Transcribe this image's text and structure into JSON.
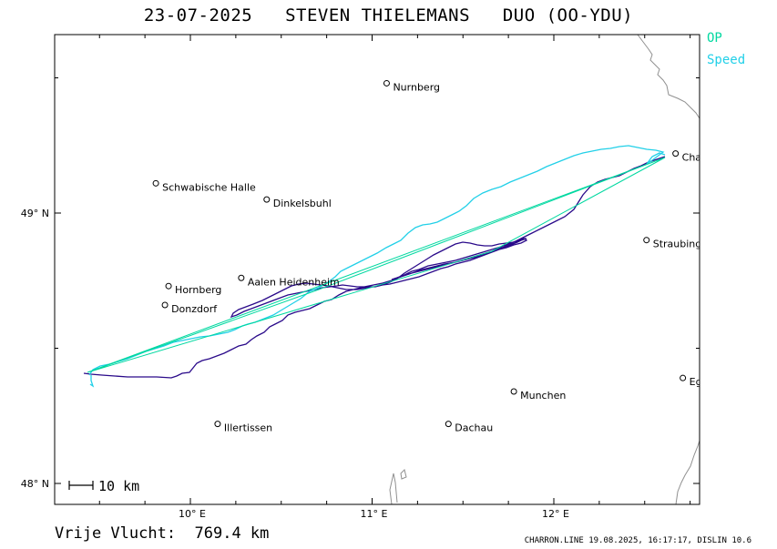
{
  "title": "23-07-2025   STEVEN THIELEMANS   DUO (OO-YDU)",
  "legend": [
    {
      "label": "OP",
      "color": "#00d8a0"
    },
    {
      "label": "Speed",
      "color": "#22d0e8"
    }
  ],
  "axes": {
    "lat_labels": [
      {
        "text": "49° N",
        "lat": 49.0
      },
      {
        "text": "48° N",
        "lat": 48.0
      }
    ],
    "lon_labels": [
      {
        "text": "10° E",
        "lon": 10.0
      },
      {
        "text": "11° E",
        "lon": 11.0
      },
      {
        "text": "12° E",
        "lon": 12.0
      }
    ]
  },
  "scale_bar": "10 km",
  "places": [
    {
      "name": "Nurnberg",
      "lon": 11.08,
      "lat": 49.48
    },
    {
      "name": "Cham",
      "lon": 12.67,
      "lat": 49.22
    },
    {
      "name": "Schwabische Halle",
      "lon": 9.81,
      "lat": 49.11
    },
    {
      "name": "Dinkelsbuhl",
      "lon": 10.42,
      "lat": 49.05
    },
    {
      "name": "Straubing",
      "lon": 12.51,
      "lat": 48.9
    },
    {
      "name": "Aalen Heidenheim",
      "lon": 10.28,
      "lat": 48.76
    },
    {
      "name": "Hornberg",
      "lon": 9.88,
      "lat": 48.73
    },
    {
      "name": "Donzdorf",
      "lon": 9.86,
      "lat": 48.66
    },
    {
      "name": "Munchen",
      "lon": 11.78,
      "lat": 48.34
    },
    {
      "name": "Eg",
      "lon": 12.71,
      "lat": 48.39
    },
    {
      "name": "Illertissen",
      "lon": 10.15,
      "lat": 48.22
    },
    {
      "name": "Dachau",
      "lon": 11.42,
      "lat": 48.22
    }
  ],
  "colors": {
    "track": "#2a0a8a",
    "speed": "#22d0e8",
    "op": "#00d8a0",
    "border": "#909090"
  },
  "footer": {
    "distance": "Vrije Vlucht:  769.4 km",
    "info": "CHARRON.LINE 19.08.2025, 16:17:17, DISLIN 10.6"
  }
}
